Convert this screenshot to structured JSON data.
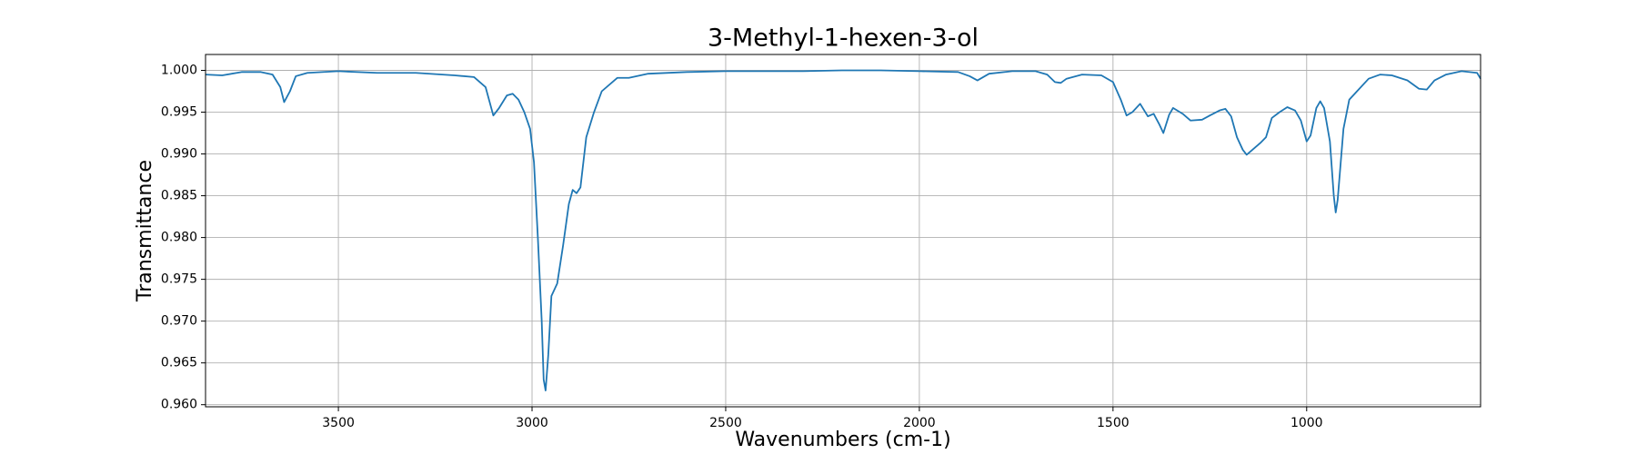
{
  "chart_data": {
    "type": "line",
    "title": "3-Methyl-1-hexen-3-ol",
    "x_label": "Wavenumbers (cm-1)",
    "y_label": "Transmittance",
    "color": "#1f77b4",
    "grid": true,
    "x_reversed": true,
    "xlim": [
      3843,
      551
    ],
    "ylim": [
      0.95975,
      1.0019
    ],
    "xticks": [
      3500,
      3000,
      2500,
      2000,
      1500,
      1000
    ],
    "yticks": [
      {
        "value": 0.96,
        "label": "0.960"
      },
      0.965,
      {
        "value": 0.97,
        "label": "0.970"
      },
      0.975,
      {
        "value": 0.98,
        "label": "0.980"
      },
      0.985,
      {
        "value": 0.99,
        "label": "0.990"
      },
      0.995,
      {
        "value": 1,
        "label": "1.000"
      }
    ],
    "x": [
      3843,
      3800,
      3750,
      3700,
      3670,
      3650,
      3640,
      3625,
      3610,
      3580,
      3500,
      3400,
      3300,
      3200,
      3150,
      3120,
      3100,
      3085,
      3065,
      3050,
      3035,
      3020,
      3005,
      2995,
      2985,
      2975,
      2970,
      2965,
      2958,
      2950,
      2935,
      2920,
      2905,
      2895,
      2885,
      2875,
      2860,
      2840,
      2820,
      2780,
      2750,
      2700,
      2600,
      2500,
      2300,
      2200,
      2100,
      2000,
      1900,
      1870,
      1850,
      1820,
      1760,
      1700,
      1670,
      1650,
      1635,
      1620,
      1580,
      1530,
      1500,
      1480,
      1465,
      1450,
      1430,
      1410,
      1395,
      1380,
      1370,
      1355,
      1345,
      1320,
      1300,
      1270,
      1250,
      1225,
      1210,
      1195,
      1180,
      1165,
      1155,
      1140,
      1120,
      1105,
      1090,
      1070,
      1050,
      1030,
      1015,
      1000,
      990,
      975,
      965,
      955,
      940,
      930,
      925,
      920,
      905,
      890,
      870,
      840,
      810,
      780,
      740,
      710,
      690,
      670,
      640,
      600,
      560,
      551
    ],
    "values": [
      0.9995,
      0.9994,
      0.9998,
      0.9998,
      0.9995,
      0.998,
      0.9962,
      0.9975,
      0.9993,
      0.9997,
      0.9999,
      0.9997,
      0.9997,
      0.9994,
      0.9992,
      0.998,
      0.9946,
      0.9955,
      0.997,
      0.9972,
      0.9965,
      0.995,
      0.993,
      0.989,
      0.98,
      0.97,
      0.963,
      0.9617,
      0.966,
      0.973,
      0.9745,
      0.979,
      0.984,
      0.9857,
      0.9853,
      0.986,
      0.992,
      0.995,
      0.9975,
      0.9991,
      0.9991,
      0.9996,
      0.9998,
      0.9999,
      0.9999,
      1.0,
      1.0,
      0.9999,
      0.9998,
      0.9993,
      0.9988,
      0.9996,
      0.9999,
      0.9999,
      0.9995,
      0.9986,
      0.9985,
      0.999,
      0.9995,
      0.9994,
      0.9986,
      0.9965,
      0.9946,
      0.995,
      0.996,
      0.9945,
      0.9948,
      0.9935,
      0.9925,
      0.9947,
      0.9955,
      0.9948,
      0.994,
      0.9941,
      0.9946,
      0.9952,
      0.9954,
      0.9945,
      0.992,
      0.9905,
      0.9899,
      0.9905,
      0.9913,
      0.992,
      0.9943,
      0.995,
      0.9956,
      0.9952,
      0.994,
      0.9915,
      0.9922,
      0.9955,
      0.9963,
      0.9955,
      0.9915,
      0.985,
      0.983,
      0.9845,
      0.993,
      0.9965,
      0.9975,
      0.999,
      0.9995,
      0.9994,
      0.9988,
      0.9978,
      0.9977,
      0.9988,
      0.9995,
      0.9999,
      0.9997,
      0.999
    ]
  }
}
